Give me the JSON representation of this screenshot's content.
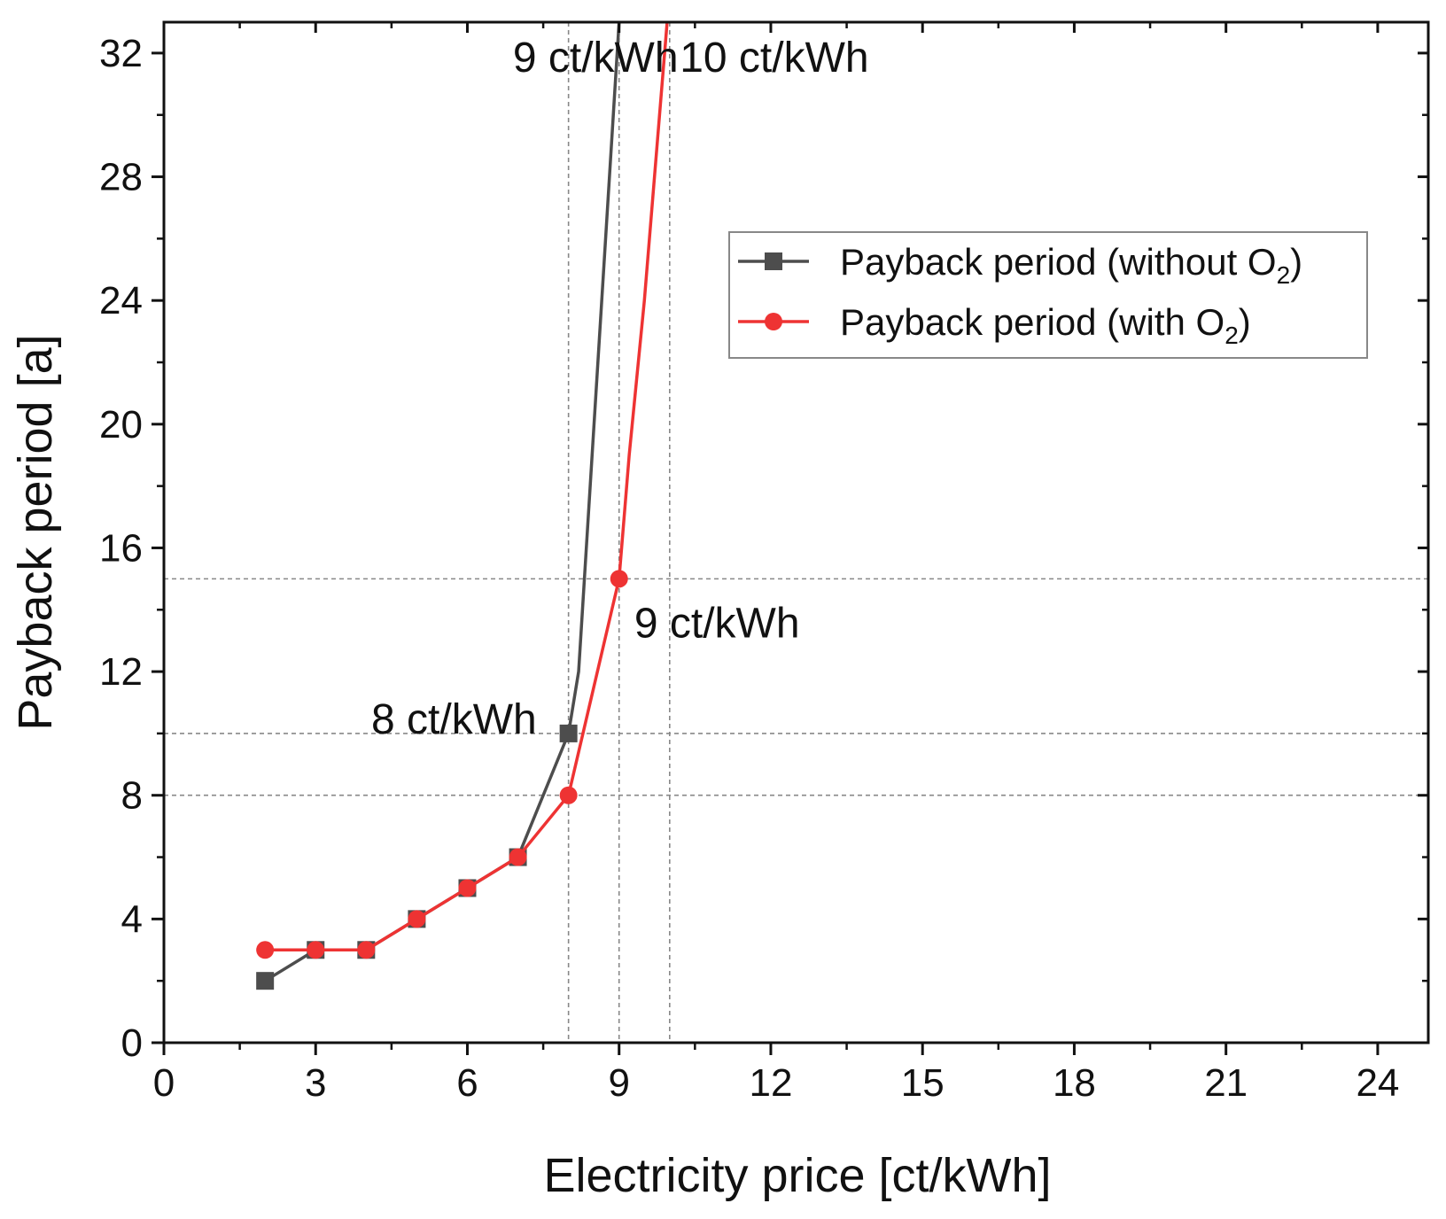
{
  "chart_data": {
    "type": "line",
    "xlabel": "Electricity price [ct/kWh]",
    "ylabel": "Payback period [a]",
    "xlim": [
      0,
      25
    ],
    "ylim": [
      0,
      33
    ],
    "x_ticks": [
      0,
      3,
      6,
      9,
      12,
      15,
      18,
      21,
      24
    ],
    "y_ticks": [
      0,
      4,
      8,
      12,
      16,
      20,
      24,
      28,
      32
    ],
    "x_tick_labels": [
      "0",
      "3",
      "6",
      "9",
      "12",
      "15",
      "18",
      "21",
      "24"
    ],
    "y_tick_labels": [
      "0",
      "4",
      "8",
      "12",
      "16",
      "20",
      "24",
      "28",
      "32"
    ],
    "grid": false,
    "legend_position": "upper-right",
    "series": [
      {
        "name": "Payback period (without O2)",
        "legend_main": "Payback period (without O",
        "legend_sub": "2",
        "legend_end": ")",
        "color": "#4d4d4d",
        "marker": "square",
        "x": [
          2,
          3,
          4,
          5,
          6,
          7,
          8,
          8.2,
          9
        ],
        "y": [
          2,
          3,
          3,
          4,
          5,
          6,
          10,
          12,
          33
        ]
      },
      {
        "name": "Payback period (with O2)",
        "legend_main": "Payback period (with O",
        "legend_sub": "2",
        "legend_end": ")",
        "color": "#ee3333",
        "marker": "circle",
        "x": [
          2,
          3,
          4,
          5,
          6,
          7,
          8,
          9,
          9.2,
          9.5,
          9.8,
          10
        ],
        "y": [
          3,
          3,
          3,
          4,
          5,
          6,
          8,
          15,
          19,
          24,
          30,
          34
        ]
      }
    ],
    "reference_lines": {
      "vertical": [
        8,
        9,
        10
      ],
      "horizontal": [
        8,
        10,
        15
      ]
    },
    "annotations": [
      {
        "text": "9 ct/kWh",
        "x": 6.9,
        "y": 31.4
      },
      {
        "text": "10 ct/kWh",
        "x": 10.2,
        "y": 31.4
      },
      {
        "text": "9 ct/kWh",
        "x": 9.3,
        "y": 13.1
      },
      {
        "text": "8 ct/kWh",
        "x": 4.1,
        "y": 10.0
      }
    ]
  }
}
